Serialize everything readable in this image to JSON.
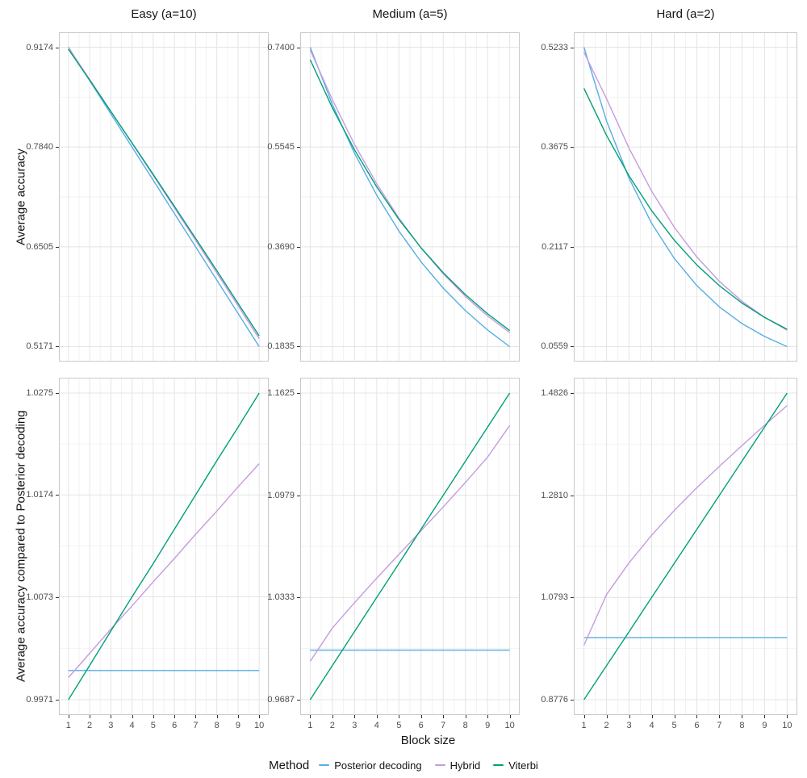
{
  "chart_data": {
    "type": "line",
    "x": [
      1,
      2,
      3,
      4,
      5,
      6,
      7,
      8,
      9,
      10
    ],
    "xlabel": "Block size",
    "facet_cols": [
      "Easy (a=10)",
      "Medium (a=5)",
      "Hard (a=2)"
    ],
    "facet_rows": [
      "Average accuracy",
      "Average accuracy compared to Posterior decoding"
    ],
    "legend": {
      "title": "Method",
      "entries": [
        "Posterior decoding",
        "Hybrid",
        "Viterbi"
      ]
    },
    "colors": {
      "Posterior decoding": "#56AEE4",
      "Hybrid": "#C59BE0",
      "Viterbi": "#00A077"
    },
    "style": {
      "grid_major": "#E4E4E4",
      "grid_minor": "#F2F2F2",
      "panel_border": "#C9C9C9",
      "tick_color": "#333333",
      "tick_label_color": "#4D4D4D",
      "text_color": "#1A1A1A",
      "background": "#FFFFFF",
      "line_width": 1.4
    },
    "panels": [
      {
        "row": 0,
        "col": 0,
        "yticks": [
          "0.5171",
          "0.6505",
          "0.7840",
          "0.9174"
        ],
        "series": [
          {
            "name": "Posterior decoding",
            "values": [
              0.9174,
              0.8729,
              0.8284,
              0.784,
              0.7395,
              0.695,
              0.6505,
              0.606,
              0.5616,
              0.5171
            ]
          },
          {
            "name": "Hybrid",
            "values": [
              0.9168,
              0.8744,
              0.8318,
              0.789,
              0.746,
              0.7027,
              0.6593,
              0.6156,
              0.5718,
              0.5277
            ]
          },
          {
            "name": "Viterbi",
            "values": [
              0.9147,
              0.8734,
              0.8317,
              0.7896,
              0.7473,
              0.7047,
              0.6618,
              0.6186,
              0.5751,
              0.5313
            ]
          }
        ]
      },
      {
        "row": 0,
        "col": 1,
        "yticks": [
          "0.1835",
          "0.3690",
          "0.5545",
          "0.7400"
        ],
        "series": [
          {
            "name": "Posterior decoding",
            "values": [
              0.74,
              0.6338,
              0.5429,
              0.465,
              0.3983,
              0.3411,
              0.2922,
              0.2503,
              0.2143,
              0.1835
            ]
          },
          {
            "name": "Hybrid",
            "values": [
              0.7348,
              0.6427,
              0.5592,
              0.4862,
              0.4224,
              0.3669,
              0.3187,
              0.2768,
              0.2404,
              0.2096
            ]
          },
          {
            "name": "Viterbi",
            "values": [
              0.7168,
              0.6276,
              0.5493,
              0.4805,
              0.4201,
              0.3672,
              0.3208,
              0.2802,
              0.2445,
              0.2133
            ]
          }
        ]
      },
      {
        "row": 0,
        "col": 2,
        "yticks": [
          "0.0559",
          "0.2117",
          "0.3675",
          "0.5233"
        ],
        "series": [
          {
            "name": "Posterior decoding",
            "values": [
              0.5233,
              0.4082,
              0.3184,
              0.2483,
              0.1937,
              0.1511,
              0.1178,
              0.0919,
              0.0717,
              0.0559
            ]
          },
          {
            "name": "Hybrid",
            "values": [
              0.5155,
              0.4429,
              0.3655,
              0.2985,
              0.2423,
              0.1958,
              0.1576,
              0.1267,
              0.1017,
              0.0815
            ]
          },
          {
            "name": "Viterbi",
            "values": [
              0.4592,
              0.3857,
              0.3222,
              0.268,
              0.2221,
              0.1834,
              0.1509,
              0.1239,
              0.1015,
              0.0829
            ]
          }
        ]
      },
      {
        "row": 1,
        "col": 0,
        "yticks": [
          "0.9971",
          "1.0073",
          "1.0174",
          "1.0275"
        ],
        "series": [
          {
            "name": "Posterior decoding",
            "values": [
              1.0,
              1.0,
              1.0,
              1.0,
              1.0,
              1.0,
              1.0,
              1.0,
              1.0,
              1.0
            ]
          },
          {
            "name": "Hybrid",
            "values": [
              0.9993,
              1.0017,
              1.0041,
              1.0064,
              1.0088,
              1.0111,
              1.0135,
              1.0158,
              1.0182,
              1.0205
            ]
          },
          {
            "name": "Viterbi",
            "values": [
              0.9971,
              1.0005,
              1.0039,
              1.0073,
              1.0106,
              1.014,
              1.0174,
              1.0208,
              1.0241,
              1.0275
            ]
          }
        ]
      },
      {
        "row": 1,
        "col": 1,
        "yticks": [
          "0.9687",
          "1.0333",
          "1.0979",
          "1.1625"
        ],
        "series": [
          {
            "name": "Posterior decoding",
            "values": [
              1.0,
              1.0,
              1.0,
              1.0,
              1.0,
              1.0,
              1.0,
              1.0,
              1.0,
              1.0
            ]
          },
          {
            "name": "Hybrid",
            "values": [
              0.993,
              1.014,
              1.03,
              1.0455,
              1.0605,
              1.0755,
              1.0905,
              1.106,
              1.122,
              1.142
            ]
          },
          {
            "name": "Viterbi",
            "values": [
              0.9687,
              0.9902,
              1.0118,
              1.0333,
              1.0548,
              1.0764,
              1.0979,
              1.1194,
              1.141,
              1.1625
            ]
          }
        ]
      },
      {
        "row": 1,
        "col": 2,
        "yticks": [
          "0.8776",
          "1.0793",
          "1.2810",
          "1.4826"
        ],
        "series": [
          {
            "name": "Posterior decoding",
            "values": [
              1.0,
              1.0,
              1.0,
              1.0,
              1.0,
              1.0,
              1.0,
              1.0,
              1.0,
              1.0
            ]
          },
          {
            "name": "Hybrid",
            "values": [
              0.985,
              1.085,
              1.148,
              1.202,
              1.251,
              1.296,
              1.338,
              1.379,
              1.419,
              1.458
            ]
          },
          {
            "name": "Viterbi",
            "values": [
              0.8776,
              0.9448,
              1.012,
              1.0793,
              1.1465,
              1.2137,
              1.281,
              1.3482,
              1.4154,
              1.4826
            ]
          }
        ]
      }
    ]
  }
}
